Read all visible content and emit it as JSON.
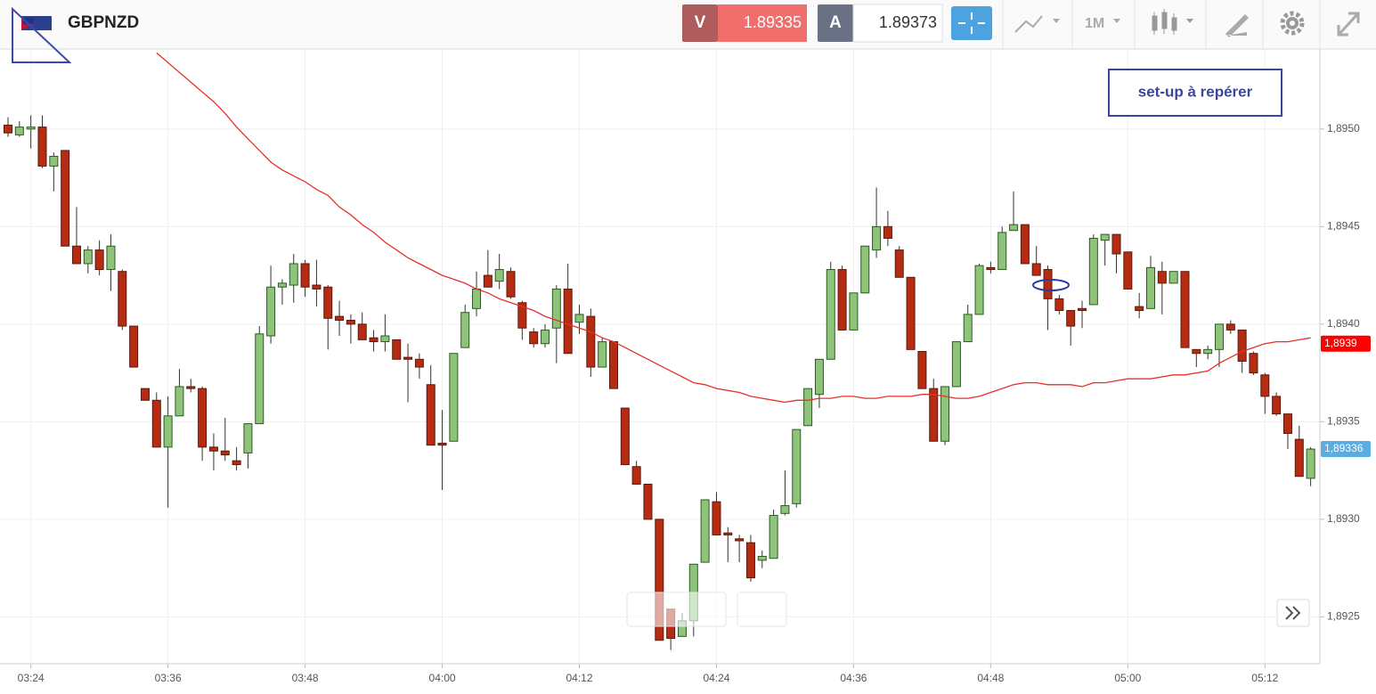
{
  "header": {
    "symbol": "GBPNZD",
    "sell_label": "V",
    "sell_price": "1.89335",
    "buy_label": "A",
    "buy_price": "1.89373",
    "timeframe": "1M"
  },
  "chart_data": {
    "type": "candlestick",
    "annotation": "set-up à repérer",
    "categories": [
      null,
      null,
      "03:24",
      null,
      null,
      null,
      null,
      null,
      null,
      null,
      null,
      null,
      null,
      null,
      "03:36",
      null,
      null,
      null,
      null,
      null,
      null,
      null,
      null,
      null,
      null,
      null,
      "03:48",
      null,
      null,
      null,
      null,
      null,
      null,
      null,
      null,
      null,
      null,
      null,
      "04:00",
      null,
      null,
      null,
      null,
      null,
      null,
      null,
      null,
      null,
      null,
      null,
      "04:12",
      null,
      null,
      null,
      null,
      null,
      null,
      null,
      null,
      null,
      null,
      null,
      "04:24",
      null,
      null,
      null,
      null,
      null,
      null,
      null,
      null,
      null,
      null,
      null,
      "04:36",
      null,
      null,
      null,
      null,
      null,
      null,
      null,
      null,
      null,
      null,
      null,
      "04:48",
      null,
      null,
      null,
      null,
      null,
      null,
      null,
      null,
      null,
      null,
      null,
      "05:00",
      null,
      null,
      null,
      null,
      null,
      null,
      null,
      null,
      null,
      null,
      null,
      "05:12",
      null,
      null,
      null,
      null
    ],
    "open": [
      1.89502,
      1.89497,
      1.895,
      1.89501,
      1.89481,
      1.89489,
      1.8944,
      1.89431,
      1.89438,
      1.89428,
      1.89427,
      1.89399,
      1.89367,
      1.89361,
      1.89337,
      1.89353,
      1.89368,
      1.89367,
      1.89337,
      1.89335,
      1.8933,
      1.89334,
      1.89349,
      1.89394,
      1.89419,
      1.8942,
      1.89431,
      1.8942,
      1.89419,
      1.89404,
      1.89402,
      1.894,
      1.89393,
      1.89391,
      1.89392,
      1.89383,
      1.89382,
      1.89369,
      1.89339,
      1.8934,
      1.89388,
      1.89408,
      1.89425,
      1.89422,
      1.89427,
      1.89411,
      1.89396,
      1.8939,
      1.89398,
      1.89418,
      1.89401,
      1.89404,
      1.89378,
      1.89391,
      1.89357,
      1.89327,
      1.89318,
      1.893,
      1.89254,
      1.8924,
      1.89248,
      1.89278,
      1.89309,
      1.89293,
      1.8929,
      1.89288,
      1.89279,
      1.8928,
      1.89303,
      1.89308,
      1.89348,
      1.89364,
      1.89382,
      1.89428,
      1.89397,
      1.89416,
      1.89438,
      1.8945,
      1.89438,
      1.89424,
      1.89386,
      1.89367,
      1.8934,
      1.89368,
      1.89391,
      1.89405,
      1.89429,
      1.89428,
      1.89448,
      1.89451,
      1.89431,
      1.89428,
      1.89413,
      1.89407,
      1.89408,
      1.8941,
      1.89443,
      1.89446,
      1.89437,
      1.89409,
      1.89408,
      1.89427,
      1.89421,
      1.89427,
      1.89387,
      1.89385,
      1.89387,
      1.894,
      1.89397,
      1.89385,
      1.89374,
      1.89363,
      1.89354,
      1.89341,
      1.89321
    ],
    "high": [
      1.89506,
      1.89504,
      1.89507,
      1.89507,
      1.89488,
      1.89489,
      1.8946,
      1.8944,
      1.89443,
      1.89446,
      1.89428,
      1.89399,
      1.89367,
      1.89365,
      1.89363,
      1.89377,
      1.89372,
      1.89368,
      1.89344,
      1.89352,
      1.89337,
      1.89349,
      1.89399,
      1.8943,
      1.89423,
      1.89436,
      1.89433,
      1.89433,
      1.8942,
      1.89412,
      1.89405,
      1.89406,
      1.89397,
      1.89405,
      1.89392,
      1.8939,
      1.89385,
      1.89379,
      1.89356,
      1.89385,
      1.8941,
      1.89427,
      1.89438,
      1.89436,
      1.89429,
      1.89412,
      1.89398,
      1.894,
      1.8942,
      1.89431,
      1.8941,
      1.89408,
      1.89393,
      1.89391,
      1.89357,
      1.8933,
      1.89318,
      1.893,
      1.89254,
      1.89252,
      1.89277,
      1.8931,
      1.89314,
      1.89296,
      1.89292,
      1.89292,
      1.89284,
      1.89305,
      1.89325,
      1.89346,
      1.89367,
      1.89382,
      1.89432,
      1.8943,
      1.89416,
      1.8944,
      1.8947,
      1.89458,
      1.8944,
      1.89424,
      1.89386,
      1.89372,
      1.89368,
      1.89391,
      1.8941,
      1.89431,
      1.89432,
      1.8945,
      1.89468,
      1.89451,
      1.8944,
      1.8943,
      1.89415,
      1.89407,
      1.89412,
      1.89446,
      1.89446,
      1.89446,
      1.89437,
      1.89416,
      1.89435,
      1.89432,
      1.89427,
      1.89427,
      1.89387,
      1.89389,
      1.894,
      1.89402,
      1.89397,
      1.89386,
      1.89375,
      1.89365,
      1.89354,
      1.89348,
      1.89337
    ],
    "low": [
      1.89496,
      1.89496,
      1.8949,
      1.8948,
      1.89468,
      1.8944,
      1.89431,
      1.89426,
      1.89425,
      1.89417,
      1.89397,
      1.89378,
      1.89361,
      1.89337,
      1.89306,
      1.89353,
      1.89365,
      1.8933,
      1.89325,
      1.8933,
      1.89325,
      1.89326,
      1.89349,
      1.8939,
      1.8941,
      1.89411,
      1.89414,
      1.89409,
      1.89387,
      1.89394,
      1.8939,
      1.89392,
      1.89386,
      1.89386,
      1.89382,
      1.8936,
      1.89372,
      1.89338,
      1.89315,
      1.8934,
      1.89388,
      1.89404,
      1.89419,
      1.89418,
      1.89413,
      1.89392,
      1.89388,
      1.89388,
      1.8938,
      1.89385,
      1.89395,
      1.89373,
      1.89378,
      1.89367,
      1.89328,
      1.89318,
      1.893,
      1.89238,
      1.89233,
      1.8924,
      1.8924,
      1.89278,
      1.89292,
      1.89278,
      1.89278,
      1.89268,
      1.89275,
      1.8928,
      1.89302,
      1.89306,
      1.89348,
      1.89357,
      1.89382,
      1.89397,
      1.89397,
      1.89416,
      1.89434,
      1.8944,
      1.89424,
      1.89387,
      1.89367,
      1.8934,
      1.89338,
      1.89368,
      1.89391,
      1.89405,
      1.89426,
      1.89428,
      1.89448,
      1.89431,
      1.89425,
      1.89397,
      1.89405,
      1.89389,
      1.89398,
      1.8941,
      1.8943,
      1.89426,
      1.89418,
      1.89403,
      1.89408,
      1.89405,
      1.89421,
      1.89388,
      1.89378,
      1.89382,
      1.89378,
      1.89395,
      1.89375,
      1.89374,
      1.89354,
      1.89353,
      1.89336,
      1.89322,
      1.89317
    ],
    "close": [
      1.89498,
      1.89501,
      1.89501,
      1.89481,
      1.89486,
      1.8944,
      1.89431,
      1.89438,
      1.89428,
      1.8944,
      1.89399,
      1.89378,
      1.89361,
      1.89337,
      1.89353,
      1.89368,
      1.89367,
      1.89337,
      1.89335,
      1.89333,
      1.89328,
      1.89349,
      1.89395,
      1.89419,
      1.89421,
      1.89431,
      1.89419,
      1.89418,
      1.89403,
      1.89402,
      1.894,
      1.89392,
      1.89391,
      1.89394,
      1.89382,
      1.89382,
      1.89378,
      1.89338,
      1.89338,
      1.89385,
      1.89406,
      1.89418,
      1.89419,
      1.89428,
      1.89414,
      1.89398,
      1.8939,
      1.89397,
      1.89418,
      1.89385,
      1.89405,
      1.89378,
      1.89391,
      1.89367,
      1.89328,
      1.89318,
      1.893,
      1.89238,
      1.89239,
      1.89248,
      1.89277,
      1.8931,
      1.89292,
      1.89292,
      1.89289,
      1.8927,
      1.89281,
      1.89302,
      1.89307,
      1.89346,
      1.89367,
      1.89382,
      1.89428,
      1.89397,
      1.89416,
      1.8944,
      1.8945,
      1.89444,
      1.89424,
      1.89387,
      1.89367,
      1.8934,
      1.89368,
      1.89391,
      1.89405,
      1.8943,
      1.89428,
      1.89447,
      1.89451,
      1.89431,
      1.89425,
      1.89413,
      1.89407,
      1.89399,
      1.89407,
      1.89444,
      1.89446,
      1.89436,
      1.89418,
      1.89407,
      1.89429,
      1.89421,
      1.89427,
      1.89388,
      1.89385,
      1.89387,
      1.894,
      1.89397,
      1.89381,
      1.89375,
      1.89363,
      1.89354,
      1.89344,
      1.89322,
      1.89336
    ],
    "up_color": "#8dc47a",
    "down_color": "#b52c12",
    "moving_average": {
      "color": "#e8302a",
      "values": [
        null,
        null,
        null,
        null,
        null,
        null,
        null,
        null,
        null,
        null,
        null,
        null,
        null,
        1.89539,
        1.89534,
        1.89529,
        1.89524,
        1.89519,
        1.89514,
        1.89508,
        1.89501,
        1.89495,
        1.89489,
        1.89483,
        1.89479,
        1.89476,
        1.89473,
        1.89469,
        1.89466,
        1.8946,
        1.89456,
        1.89451,
        1.89447,
        1.89442,
        1.89438,
        1.89434,
        1.89431,
        1.89428,
        1.89425,
        1.89423,
        1.89421,
        1.89418,
        1.89416,
        1.89413,
        1.89411,
        1.89409,
        1.89407,
        1.89404,
        1.89402,
        1.894,
        1.89398,
        1.89396,
        1.89393,
        1.89391,
        1.89388,
        1.89385,
        1.89382,
        1.89379,
        1.89376,
        1.89373,
        1.8937,
        1.89369,
        1.89367,
        1.89366,
        1.89365,
        1.89363,
        1.89362,
        1.89361,
        1.8936,
        1.89361,
        1.89361,
        1.89362,
        1.89362,
        1.89363,
        1.89363,
        1.89362,
        1.89362,
        1.89363,
        1.89363,
        1.89363,
        1.89364,
        1.89364,
        1.89363,
        1.89362,
        1.89362,
        1.89363,
        1.89365,
        1.89367,
        1.89369,
        1.8937,
        1.8937,
        1.89369,
        1.89369,
        1.89369,
        1.89368,
        1.8937,
        1.8937,
        1.89371,
        1.89372,
        1.89372,
        1.89372,
        1.89373,
        1.89374,
        1.89374,
        1.89375,
        1.89376,
        1.8938,
        1.89383,
        1.89386,
        1.89388,
        1.8939,
        1.89391,
        1.89391,
        1.89392,
        1.89393
      ]
    },
    "price_badges": [
      {
        "value": 1.8939,
        "label": "1,8939",
        "color": "#ff0000"
      },
      {
        "value": 1.89336,
        "label": "1,89336",
        "color": "#5aade0"
      }
    ],
    "ylim": [
      1.89226,
      1.89541
    ],
    "yticks": [
      {
        "value": 1.8925,
        "label": "1,8925"
      },
      {
        "value": 1.893,
        "label": "1,8930"
      },
      {
        "value": 1.8935,
        "label": "1,8935"
      },
      {
        "value": 1.894,
        "label": "1,8940"
      },
      {
        "value": 1.8945,
        "label": "1,8945"
      },
      {
        "value": 1.895,
        "label": "1,8950"
      }
    ],
    "grid": true
  }
}
